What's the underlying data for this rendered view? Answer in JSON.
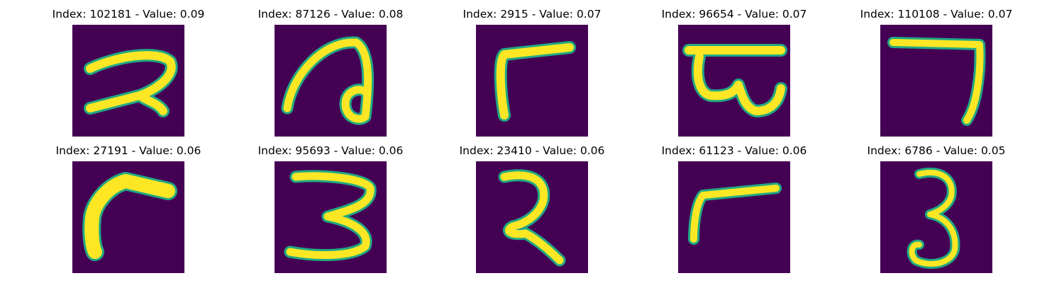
{
  "figure": {
    "colors": {
      "background": "#440154",
      "stroke": "#fde725",
      "edge": "#22a884"
    },
    "panels": [
      {
        "title": "Index: 102181 - Value: 0.09",
        "glyph": "bengali-character-stroke"
      },
      {
        "title": "Index: 87126 - Value: 0.08",
        "glyph": "bengali-character-loop"
      },
      {
        "title": "Index: 2915 - Value: 0.07",
        "glyph": "corner-stroke"
      },
      {
        "title": "Index: 96654 - Value: 0.07",
        "glyph": "bengali-character-bar"
      },
      {
        "title": "Index: 110108 - Value: 0.07",
        "glyph": "seven-stroke"
      },
      {
        "title": "Index: 27191 - Value: 0.06",
        "glyph": "corner-stroke-thick"
      },
      {
        "title": "Index: 95693 - Value: 0.06",
        "glyph": "three-stroke"
      },
      {
        "title": "Index: 23410 - Value: 0.06",
        "glyph": "bengali-character-curl"
      },
      {
        "title": "Index: 61123 - Value: 0.06",
        "glyph": "corner-stroke-thin"
      },
      {
        "title": "Index: 6786 - Value: 0.05",
        "glyph": "three-stroke-thin"
      }
    ]
  }
}
